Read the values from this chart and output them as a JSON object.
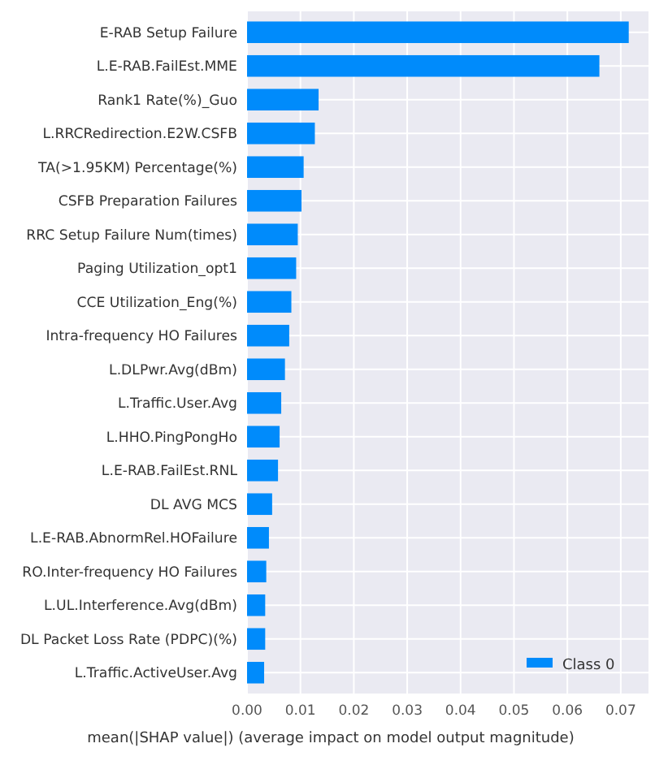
{
  "chart_data": {
    "type": "bar",
    "orientation": "horizontal",
    "xlabel": "mean(|SHAP value|) (average impact on model output magnitude)",
    "categories": [
      "E-RAB Setup Failure",
      "L.E-RAB.FailEst.MME",
      "Rank1 Rate(%)_Guo",
      "L.RRCRedirection.E2W.CSFB",
      "TA(>1.95KM) Percentage(%)",
      "CSFB Preparation Failures",
      "RRC Setup Failure Num(times)",
      "Paging Utilization_opt1",
      "CCE Utilization_Eng(%)",
      "Intra-frequency HO Failures",
      "L.DLPwr.Avg(dBm)",
      "L.Traffic.User.Avg",
      "L.HHO.PingPongHo",
      "L.E-RAB.FailEst.RNL",
      "DL AVG MCS",
      "L.E-RAB.AbnormRel.HOFailure",
      "RO.Inter-frequency HO Failures",
      "L.UL.Interference.Avg(dBm)",
      "DL Packet Loss Rate (PDPC)(%)",
      "L.Traffic.ActiveUser.Avg"
    ],
    "series": [
      {
        "name": "Class 0",
        "color": "#008bfb",
        "values": [
          0.0715,
          0.066,
          0.0134,
          0.0127,
          0.0106,
          0.0102,
          0.0095,
          0.0092,
          0.0083,
          0.0079,
          0.0071,
          0.0064,
          0.0061,
          0.0058,
          0.0047,
          0.0041,
          0.0036,
          0.0034,
          0.0034,
          0.0032
        ]
      }
    ],
    "xlim": [
      0,
      0.0752
    ],
    "xticks": [
      {
        "value": 0,
        "label": "0.00"
      },
      {
        "value": 0.01,
        "label": "0.01"
      },
      {
        "value": 0.02,
        "label": "0.02"
      },
      {
        "value": 0.03,
        "label": "0.03"
      },
      {
        "value": 0.04,
        "label": "0.04"
      },
      {
        "value": 0.05,
        "label": "0.05"
      },
      {
        "value": 0.06,
        "label": "0.06"
      },
      {
        "value": 0.07,
        "label": "0.07"
      }
    ],
    "grid": true,
    "legend": "bottom right"
  }
}
